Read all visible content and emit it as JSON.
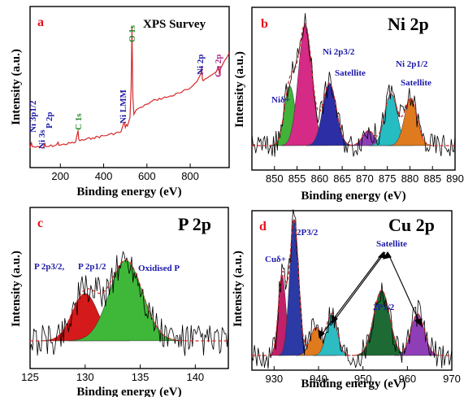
{
  "chart_data": [
    {
      "panel": "a",
      "type": "line",
      "title": "XPS Survey",
      "xlabel": "Binding energy (eV)",
      "ylabel": "Intensity (a.u.)",
      "xlim": [
        60,
        980
      ],
      "ylim": [
        0,
        1
      ],
      "xticks": [
        200,
        400,
        600,
        800
      ],
      "series": [
        {
          "color": "#d52a2a",
          "x": [
            60,
            66,
            70,
            120,
            129,
            131,
            140,
            180,
            190,
            192,
            200,
            270,
            282,
            285,
            290,
            350,
            420,
            480,
            495,
            500,
            505,
            510,
            518,
            522,
            527,
            531,
            535,
            540,
            550,
            560,
            580,
            600,
            640,
            700,
            760,
            800,
            820,
            840,
            850,
            853,
            856,
            860,
            880,
            900,
            920,
            932,
            935,
            940,
            960,
            980
          ],
          "y": [
            0.1,
            0.14,
            0.11,
            0.1,
            0.13,
            0.11,
            0.11,
            0.12,
            0.14,
            0.12,
            0.12,
            0.14,
            0.22,
            0.16,
            0.15,
            0.17,
            0.19,
            0.21,
            0.28,
            0.24,
            0.26,
            0.25,
            0.29,
            0.31,
            0.52,
            0.93,
            0.45,
            0.33,
            0.36,
            0.37,
            0.38,
            0.4,
            0.43,
            0.45,
            0.48,
            0.51,
            0.54,
            0.58,
            0.61,
            0.66,
            0.57,
            0.56,
            0.58,
            0.6,
            0.62,
            0.66,
            0.6,
            0.64,
            0.7,
            0.75
          ]
        }
      ],
      "annotations": [
        {
          "text": "Ni 3p1/2",
          "x": 70,
          "color": "#1d1aa8"
        },
        {
          "text": "Ni 3s",
          "x": 110,
          "color": "#1d1aa8"
        },
        {
          "text": "P 2p",
          "x": 133,
          "color": "#1d1aa8"
        },
        {
          "text": "C 1s",
          "x": 284,
          "color": "#1f8a2a"
        },
        {
          "text": "Ni LMM",
          "x": 488,
          "color": "#1d1aa8"
        },
        {
          "text": "O 1s",
          "x": 531,
          "color": "#1f8a2a"
        },
        {
          "text": "Ni 2p",
          "x": 855,
          "color": "#1d1aa8"
        },
        {
          "text": "Cu 2p",
          "x": 935,
          "color": "#b02a8c"
        }
      ]
    },
    {
      "panel": "b",
      "type": "line",
      "title": "Ni 2p",
      "xlabel": "Binding energy (eV)",
      "ylabel": "Intensity (a.u.)",
      "xlim": [
        845,
        890
      ],
      "ylim": [
        0,
        1
      ],
      "xticks": [
        850,
        855,
        860,
        865,
        870,
        875,
        880,
        885,
        890
      ],
      "peaks": [
        {
          "center": 853.4,
          "height": 0.48,
          "sigma": 1.2,
          "color": "#42b23a"
        },
        {
          "center": 856.8,
          "height": 0.97,
          "sigma": 1.5,
          "color": "#d52a86"
        },
        {
          "center": 862.2,
          "height": 0.5,
          "sigma": 1.5,
          "color": "#2c2ea6"
        },
        {
          "center": 870.8,
          "height": 0.12,
          "sigma": 1.3,
          "color": "#8e3fb8"
        },
        {
          "center": 875.8,
          "height": 0.42,
          "sigma": 1.4,
          "color": "#25bcc2"
        },
        {
          "center": 880.2,
          "height": 0.38,
          "sigma": 1.4,
          "color": "#e07a1e"
        }
      ],
      "annotations": [
        {
          "text": "Niδ+",
          "color": "#1d1aa8"
        },
        {
          "text": "Ni 2p3/2",
          "color": "#1d1aa8"
        },
        {
          "text": "Satellite",
          "color": "#1d1aa8"
        },
        {
          "text": "Ni 2p1/2",
          "color": "#1d1aa8"
        },
        {
          "text": "Satellite",
          "color": "#1d1aa8"
        }
      ]
    },
    {
      "panel": "c",
      "type": "line",
      "title": "P 2p",
      "xlabel": "Binding energy (eV)",
      "ylabel": "Intensity (a.u.)",
      "xlim": [
        125,
        143
      ],
      "ylim": [
        0,
        1
      ],
      "xticks": [
        125,
        130,
        135,
        140
      ],
      "peaks": [
        {
          "center": 130.0,
          "height": 0.46,
          "sigma": 1.15,
          "color": "#d41a1a"
        },
        {
          "center": 133.7,
          "height": 0.78,
          "sigma": 1.5,
          "color": "#3fb83a"
        }
      ],
      "annotations": [
        {
          "text": "P 2p3/2,",
          "color": "#1d1aa8"
        },
        {
          "text": "P 2p1/2",
          "color": "#1d1aa8"
        },
        {
          "text": "Oxidised P",
          "color": "#1d1aa8"
        }
      ]
    },
    {
      "panel": "d",
      "type": "line",
      "title": "Cu 2p",
      "xlabel": "Binding energy (eV)",
      "ylabel": "Intensity (a.u.)",
      "xlim": [
        925,
        970
      ],
      "ylim": [
        0,
        1
      ],
      "xticks": [
        930,
        940,
        950,
        960,
        970
      ],
      "peaks": [
        {
          "center": 931.8,
          "height": 0.58,
          "sigma": 0.85,
          "color": "#c2206a"
        },
        {
          "center": 934.5,
          "height": 0.98,
          "sigma": 1.0,
          "color": "#2c3aa6"
        },
        {
          "center": 939.4,
          "height": 0.2,
          "sigma": 1.3,
          "color": "#e07a1e"
        },
        {
          "center": 943.0,
          "height": 0.3,
          "sigma": 1.2,
          "color": "#2cbcc2"
        },
        {
          "center": 954.2,
          "height": 0.47,
          "sigma": 1.8,
          "color": "#1d6a35"
        },
        {
          "center": 962.3,
          "height": 0.3,
          "sigma": 1.5,
          "color": "#8e3fb8"
        }
      ],
      "annotations": [
        {
          "text": "Cuδ+",
          "color": "#1d1aa8"
        },
        {
          "text": "2P3/2",
          "color": "#1d1aa8"
        },
        {
          "text": "Satellite",
          "color": "#1d1aa8"
        },
        {
          "text": "2P1/2",
          "color": "#1d1aa8"
        }
      ]
    }
  ]
}
